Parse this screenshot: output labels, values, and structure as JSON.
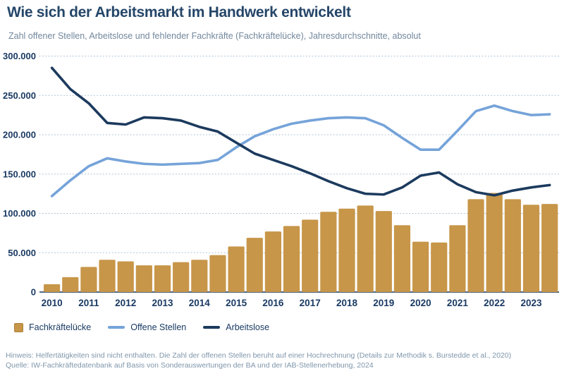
{
  "header": {
    "title": "Wie sich der Arbeitsmarkt im Handwerk entwickelt",
    "subtitle": "Zahl offener Stellen, Arbeitslose und fehlender Fachkräfte (Fachkräftelücke), Jahresdurchschnitte, absolut"
  },
  "colors": {
    "bar": "#C79649",
    "open_positions_line": "#75A3D9",
    "unemployed_line": "#1C3A5E",
    "axis_text": "#1A3A63",
    "gridline": "#A9BFD3",
    "axis_line": "#16365C",
    "title_text": "#254669",
    "subtitle_text": "#72879D",
    "footer_text": "#7F96AB"
  },
  "chart_data": {
    "type": "bar+line",
    "x_years": [
      "2010",
      "2011",
      "2012",
      "2013",
      "2014",
      "2015",
      "2016",
      "2017",
      "2018",
      "2019",
      "2020",
      "2021",
      "2022",
      "2023"
    ],
    "points_per_year": 2,
    "ylim": [
      0,
      300000
    ],
    "ytick_step": 50000,
    "ytick_labels": [
      "0",
      "50.000",
      "100.000",
      "150.000",
      "200.000",
      "250.000",
      "300.000"
    ],
    "grid": "horizontal-dotted",
    "legend_position": "bottom-left",
    "series": [
      {
        "name": "Fachkräftelücke",
        "type": "bar",
        "color": "#C79649",
        "values": [
          10000,
          19000,
          32000,
          41000,
          39000,
          34000,
          34000,
          38000,
          41000,
          47000,
          58000,
          69000,
          77000,
          84000,
          92000,
          102000,
          106000,
          110000,
          103000,
          85000,
          64000,
          63000,
          85000,
          118000,
          126000,
          118000,
          111000,
          112000
        ]
      },
      {
        "name": "Offene Stellen",
        "type": "line",
        "color": "#75A3D9",
        "values": [
          122000,
          142000,
          160000,
          170000,
          166000,
          163000,
          162000,
          163000,
          164000,
          168000,
          184000,
          198000,
          207000,
          214000,
          218000,
          221000,
          222000,
          221000,
          212000,
          196000,
          181000,
          181000,
          205000,
          230000,
          237000,
          230000,
          225000,
          226000
        ]
      },
      {
        "name": "Arbeitslose",
        "type": "line",
        "color": "#1C3A5E",
        "values": [
          285000,
          258000,
          240000,
          215000,
          213000,
          222000,
          221000,
          218000,
          210000,
          204000,
          190000,
          176000,
          168000,
          160000,
          151000,
          141000,
          132000,
          125000,
          124000,
          133000,
          148000,
          152000,
          137000,
          127000,
          123000,
          129000,
          133000,
          136000
        ]
      }
    ]
  },
  "legend": {
    "items": [
      {
        "label": "Fachkräftelücke"
      },
      {
        "label": "Offene Stellen"
      },
      {
        "label": "Arbeitslose"
      }
    ]
  },
  "footer": {
    "note": "Hinweis: Helfertätigkeiten sind nicht enthalten. Die Zahl der offenen Stellen beruht auf einer Hochrechnung (Details zur Methodik s. Burstedde et al., 2020)",
    "source": "Quelle: IW-Fachkräftedatenbank auf Basis von Sonderauswertungen der BA und der IAB-Stellenerhebung, 2024"
  }
}
